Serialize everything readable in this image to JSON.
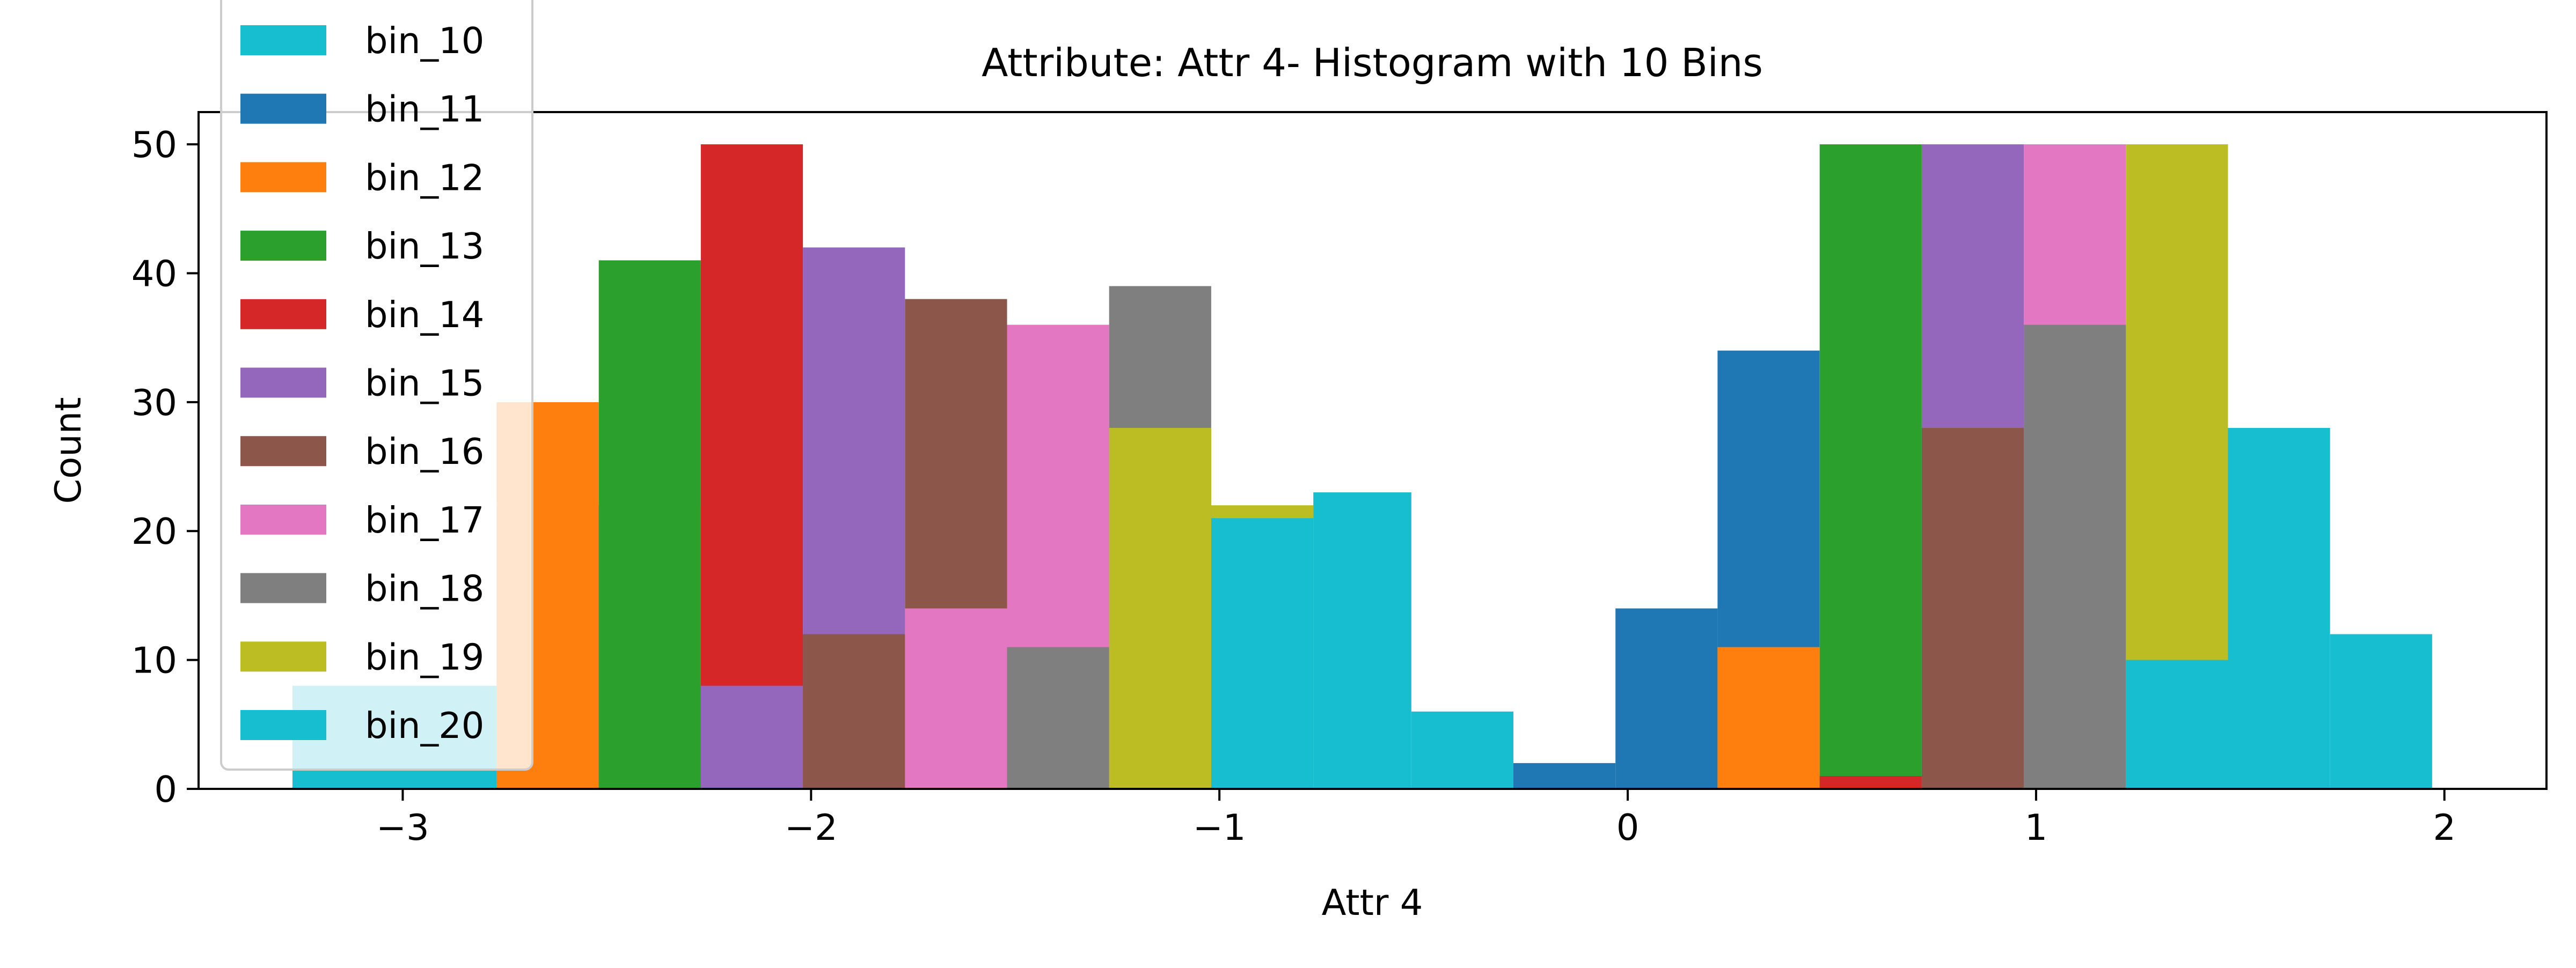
{
  "chart_data": {
    "type": "bar",
    "title": "Attribute: Attr 4- Histogram with 10 Bins",
    "xlabel": "Attr 4",
    "ylabel": "Count",
    "xlim": [
      -3.5,
      2.25
    ],
    "ylim": [
      0,
      52.5
    ],
    "xticks": [
      -3,
      -2,
      -1,
      0,
      1,
      2
    ],
    "xtick_labels": [
      "−3",
      "−2",
      "−1",
      "0",
      "1",
      "2"
    ],
    "yticks": [
      0,
      10,
      20,
      30,
      40,
      50
    ],
    "ytick_labels": [
      "0",
      "10",
      "20",
      "30",
      "40",
      "50"
    ],
    "grid": false,
    "legend_position": "upper-left",
    "series": [
      {
        "name": "bin_10",
        "color": "#17becf",
        "bars": [
          {
            "x0": -3.27,
            "x1": -2.77,
            "value": 8
          },
          {
            "x0": -2.77,
            "x1": -2.27,
            "value": 22
          }
        ]
      },
      {
        "name": "bin_11",
        "color": "#1f77b4",
        "bars": [
          {
            "x0": -0.28,
            "x1": -0.03,
            "value": 2
          },
          {
            "x0": -0.03,
            "x1": 0.22,
            "value": 14
          },
          {
            "x0": 0.22,
            "x1": 0.47,
            "value": 34
          }
        ]
      },
      {
        "name": "bin_12",
        "color": "#ff7f0e",
        "bars": [
          {
            "x0": -2.77,
            "x1": -2.52,
            "value": 30
          },
          {
            "x0": 0.22,
            "x1": 0.47,
            "value": 11
          }
        ]
      },
      {
        "name": "bin_13",
        "color": "#2ca02c",
        "bars": [
          {
            "x0": -2.52,
            "x1": -2.27,
            "value": 41
          },
          {
            "x0": 0.47,
            "x1": 0.72,
            "value": 50
          }
        ]
      },
      {
        "name": "bin_14",
        "color": "#d62728",
        "bars": [
          {
            "x0": -2.27,
            "x1": -2.02,
            "value": 50
          },
          {
            "x0": 0.47,
            "x1": 0.72,
            "value": 1
          }
        ]
      },
      {
        "name": "bin_15",
        "color": "#9467bd",
        "bars": [
          {
            "x0": -2.27,
            "x1": -2.02,
            "value": 8
          },
          {
            "x0": -2.02,
            "x1": -1.77,
            "value": 42
          },
          {
            "x0": 0.72,
            "x1": 0.97,
            "value": 50
          }
        ]
      },
      {
        "name": "bin_16",
        "color": "#8c564b",
        "bars": [
          {
            "x0": -2.02,
            "x1": -1.77,
            "value": 12
          },
          {
            "x0": -1.77,
            "x1": -1.52,
            "value": 38
          },
          {
            "x0": 0.72,
            "x1": 0.97,
            "value": 28
          }
        ]
      },
      {
        "name": "bin_17",
        "color": "#e377c2",
        "bars": [
          {
            "x0": -1.77,
            "x1": -1.52,
            "value": 14
          },
          {
            "x0": -1.52,
            "x1": -1.27,
            "value": 36
          },
          {
            "x0": 0.97,
            "x1": 1.22,
            "value": 50
          }
        ]
      },
      {
        "name": "bin_18",
        "color": "#7f7f7f",
        "bars": [
          {
            "x0": -1.52,
            "x1": -1.27,
            "value": 11
          },
          {
            "x0": -1.27,
            "x1": -1.02,
            "value": 39
          },
          {
            "x0": 0.97,
            "x1": 1.22,
            "value": 36
          }
        ]
      },
      {
        "name": "bin_19",
        "color": "#bcbd22",
        "bars": [
          {
            "x0": -1.27,
            "x1": -1.02,
            "value": 28
          },
          {
            "x0": -1.02,
            "x1": -0.77,
            "value": 22
          },
          {
            "x0": 1.22,
            "x1": 1.47,
            "value": 50
          }
        ]
      },
      {
        "name": "bin_20",
        "color": "#17becf",
        "bars": [
          {
            "x0": -1.02,
            "x1": -0.77,
            "value": 21
          },
          {
            "x0": -0.77,
            "x1": -0.53,
            "value": 23
          },
          {
            "x0": -0.53,
            "x1": -0.28,
            "value": 6
          },
          {
            "x0": 1.22,
            "x1": 1.47,
            "value": 10
          },
          {
            "x0": 1.47,
            "x1": 1.72,
            "value": 28
          },
          {
            "x0": 1.72,
            "x1": 1.97,
            "value": 12
          }
        ]
      }
    ]
  }
}
